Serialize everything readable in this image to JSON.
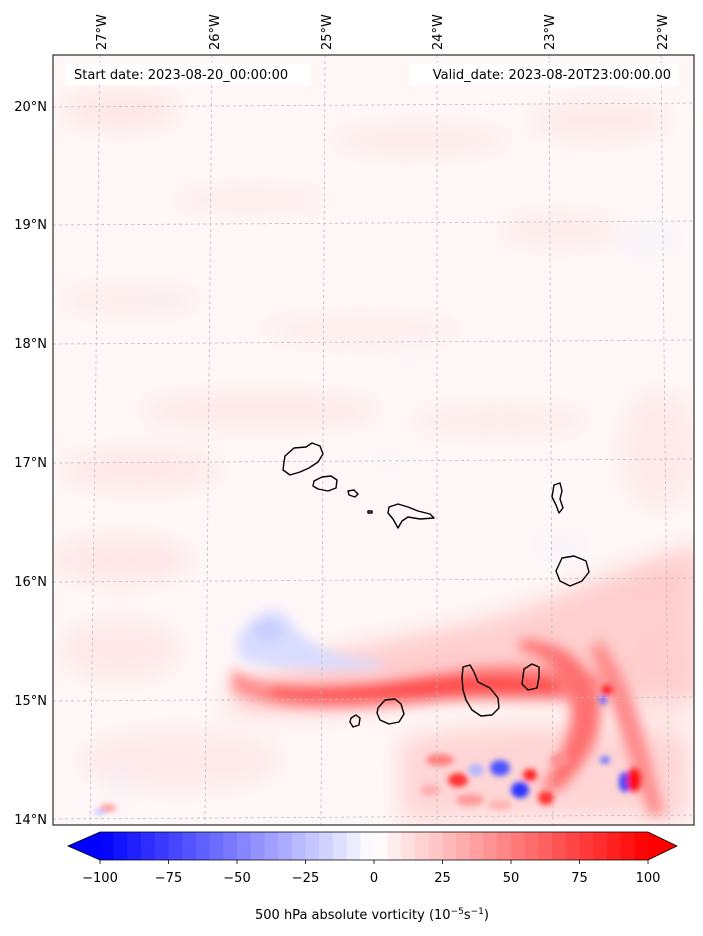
{
  "map": {
    "start_label": "Start date: 2023-08-20_00:00:00",
    "valid_label": "Valid_date: 2023-08-20T23:00:00.00",
    "lon_labels": [
      "27°W",
      "26°W",
      "25°W",
      "24°W",
      "23°W",
      "22°W"
    ],
    "lat_labels": [
      "20°N",
      "19°N",
      "18°N",
      "17°N",
      "16°N",
      "15°N",
      "14°N"
    ],
    "lon_range": [
      -27.3,
      -21.7
    ],
    "lat_range": [
      13.95,
      20.4
    ],
    "field": "500 hPa absolute vorticity",
    "islands": [
      "Santo Antão",
      "São Vicente",
      "Santa Luzia",
      "São Nicolau",
      "Sal",
      "Boa Vista",
      "Maio",
      "Santiago",
      "Fogo",
      "Brava"
    ]
  },
  "colorbar": {
    "label_main": "500 hPa absolute vorticity (10",
    "label_exp1": "−5",
    "label_mid": "s",
    "label_exp2": "−1",
    "label_end": ")",
    "min": -100,
    "max": 100,
    "step": 5,
    "ticks": [
      "−100",
      "−75",
      "−50",
      "−25",
      "0",
      "25",
      "50",
      "75",
      "100"
    ],
    "color_low": "#0000ff",
    "color_mid": "#ffffff",
    "color_high": "#ff0000"
  }
}
